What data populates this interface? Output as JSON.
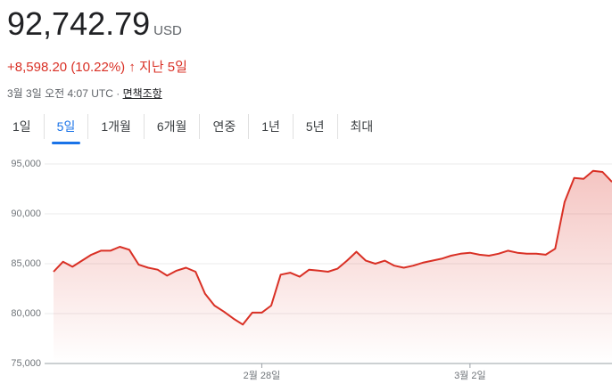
{
  "header": {
    "price": "92,742.79",
    "currency": "USD",
    "change": "+8,598.20 (10.22%)",
    "arrow": "↑",
    "period": "지난 5일",
    "timestamp": "3월 3일 오전 4:07 UTC",
    "separator": "·",
    "disclaimer": "면책조항"
  },
  "tabs": {
    "items": [
      "1일",
      "5일",
      "1개월",
      "6개월",
      "연중",
      "1년",
      "5년",
      "최대"
    ],
    "selected": 1
  },
  "chart_data": {
    "type": "line",
    "categories": [
      "",
      null,
      null,
      null,
      null,
      null,
      null,
      null,
      null,
      null,
      null,
      null,
      null,
      null,
      null,
      null,
      null,
      null,
      null,
      null,
      null,
      null,
      "2월 28일",
      null,
      null,
      null,
      null,
      null,
      null,
      null,
      null,
      null,
      null,
      null,
      null,
      null,
      null,
      null,
      null,
      null,
      null,
      null,
      null,
      null,
      "3월 2일",
      null,
      null,
      null,
      null,
      null,
      null,
      null,
      null,
      null,
      null,
      null,
      null,
      null,
      null,
      null
    ],
    "series": [
      {
        "color": "#d93025",
        "values": [
          84200,
          85200,
          84700,
          85300,
          85900,
          86300,
          86300,
          86700,
          86400,
          84900,
          84600,
          84400,
          83800,
          84300,
          84600,
          84200,
          82000,
          80800,
          80200,
          79500,
          78900,
          80100,
          80100,
          80800,
          83900,
          84100,
          83700,
          84400,
          84300,
          84200,
          84500,
          85300,
          86200,
          85300,
          85000,
          85300,
          84800,
          84600,
          84800,
          85100,
          85300,
          85500,
          85800,
          86000,
          86100,
          85900,
          85800,
          86000,
          86300,
          86100,
          86000,
          86000,
          85900,
          86500,
          91200,
          93600,
          93500,
          94300,
          94200,
          93200
        ]
      }
    ],
    "ylim": [
      75000,
      95000
    ],
    "yticks": [
      {
        "value": 75000,
        "label": "75,000"
      },
      {
        "value": 80000,
        "label": "80,000"
      },
      {
        "value": 85000,
        "label": "85,000"
      },
      {
        "value": 90000,
        "label": "90,000"
      },
      {
        "value": 95000,
        "label": "95,000"
      }
    ],
    "grid": true
  }
}
